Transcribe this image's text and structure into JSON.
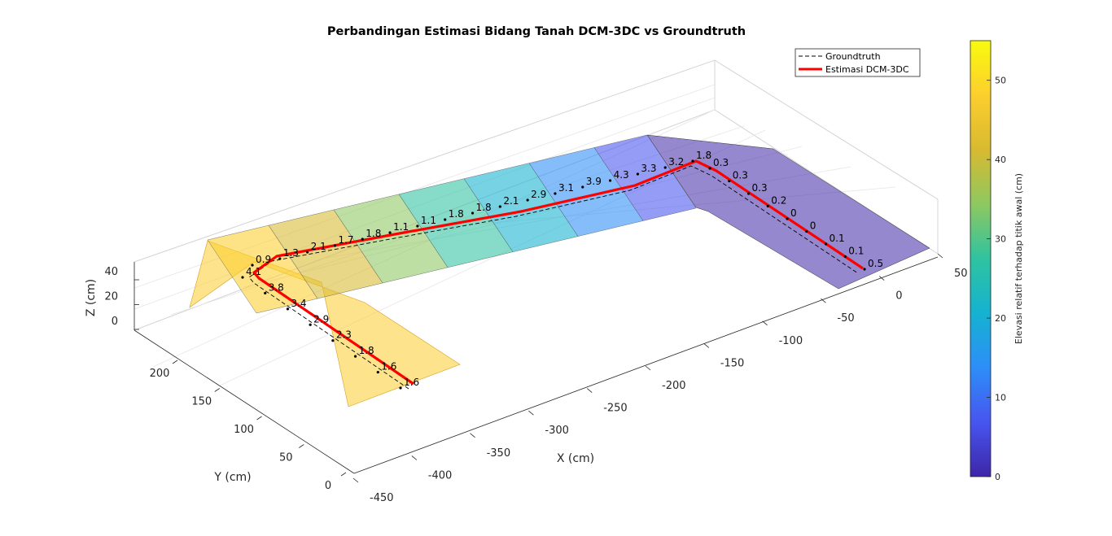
{
  "chart_data": {
    "type": "surface-3d",
    "title": "Perbandingan Estimasi Bidang Tanah DCM-3DC vs Groundtruth",
    "xlabel": "X (cm)",
    "ylabel": "Y (cm)",
    "zlabel": "Z (cm)",
    "x_ticks": [
      "50",
      "0",
      "-50",
      "-100",
      "-150",
      "-200",
      "-250",
      "-300",
      "-350",
      "-400",
      "-450"
    ],
    "y_ticks": [
      "0",
      "50",
      "100",
      "150",
      "200"
    ],
    "z_ticks": [
      "0",
      "20",
      "40"
    ],
    "legend": {
      "placement": "top-right",
      "entries": [
        {
          "label": "Groundtruth",
          "style": "dashed",
          "color": "#000000"
        },
        {
          "label": "Estimasi DCM-3DC",
          "style": "solid",
          "color": "#ff0000"
        }
      ]
    },
    "colorbar": {
      "label": "Elevasi relatif terhadap titik awal (cm)",
      "ticks": [
        "0",
        "10",
        "20",
        "30",
        "40",
        "50"
      ],
      "range": [
        0,
        55
      ],
      "colormap": [
        "#3e26a8",
        "#4755f0",
        "#2d8ef8",
        "#15b2d1",
        "#2fc3a0",
        "#8ec860",
        "#d8ba30",
        "#fcce2e",
        "#f9fb0e"
      ]
    },
    "error_labels": {
      "segment_1_short_leg": [
        "1.6",
        "1.6",
        "1.8",
        "2.3",
        "2.9",
        "3.4",
        "3.8",
        "4.1"
      ],
      "segment_2_long_leg": [
        "0.9",
        "1.3",
        "2.1",
        "1.7",
        "1.8",
        "1.1",
        "1.1",
        "1.8",
        "1.8",
        "2.1",
        "2.9",
        "3.1",
        "3.9",
        "4.3",
        "3.3",
        "3.2",
        "1.8"
      ],
      "segment_3_right_leg": [
        "0.3",
        "0.3",
        "0.3",
        "0.2",
        "0",
        "0",
        "0.1",
        "0.1",
        "0.5"
      ]
    },
    "grid": true
  }
}
